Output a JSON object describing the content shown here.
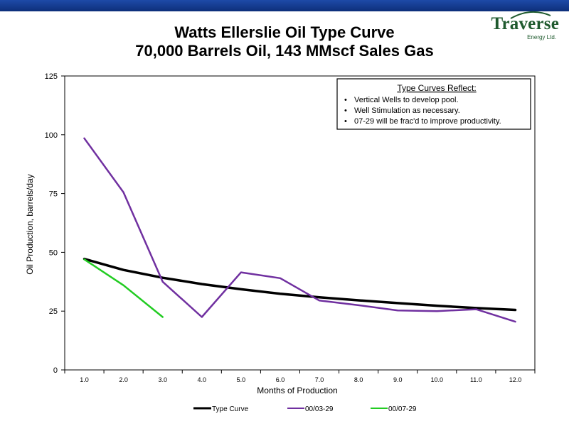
{
  "header": {
    "title_line1": "Watts Ellerslie Oil Type Curve",
    "title_line2": "70,000 Barrels Oil, 143 MMscf  Sales Gas",
    "logo_text": "Traverse",
    "logo_subtext": "Energy Ltd."
  },
  "colors": {
    "banner": "#1e4aa8",
    "type_curve": "#000000",
    "well_0329": "#7030a0",
    "well_0729": "#22cc22",
    "logo": "#1f5a2e"
  },
  "chart_data": {
    "type": "line",
    "title": "",
    "xlabel": "Months of Production",
    "ylabel": "Oil Production, barrels/day",
    "x_ticks": [
      "1.0",
      "2.0",
      "3.0",
      "4.0",
      "5.0",
      "6.0",
      "7.0",
      "8.0",
      "9.0",
      "10.0",
      "11.0",
      "12.0"
    ],
    "y_ticks": [
      "0",
      "25",
      "50",
      "75",
      "100",
      "125"
    ],
    "xlim": [
      0.5,
      12.5
    ],
    "ylim": [
      0,
      125
    ],
    "grid": false,
    "legend_position": "bottom",
    "series": [
      {
        "name": "Type Curve",
        "color": "#000000",
        "x": [
          1,
          2,
          3,
          4,
          5,
          6,
          7,
          8,
          9,
          10,
          11,
          12
        ],
        "y": [
          47.2,
          42.5,
          39.2,
          36.5,
          34.3,
          32.4,
          30.9,
          29.6,
          28.4,
          27.3,
          26.3,
          25.5
        ]
      },
      {
        "name": "00/03-29",
        "color": "#7030a0",
        "x": [
          1,
          2,
          3,
          4,
          5,
          6,
          7,
          8,
          9,
          10,
          11,
          12
        ],
        "y": [
          98.5,
          75.5,
          37.5,
          22.5,
          41.5,
          39.0,
          29.5,
          27.5,
          25.3,
          25.0,
          25.8,
          20.5
        ]
      },
      {
        "name": "00/07-29",
        "color": "#22cc22",
        "x": [
          1,
          2,
          3
        ],
        "y": [
          47.0,
          36.0,
          22.5
        ]
      }
    ],
    "annotation": {
      "heading": "Type Curves Reflect:",
      "bullets": [
        "Vertical Wells to develop pool.",
        "Well Stimulation as necessary.",
        "07-29 will be frac'd to improve productivity."
      ]
    }
  }
}
